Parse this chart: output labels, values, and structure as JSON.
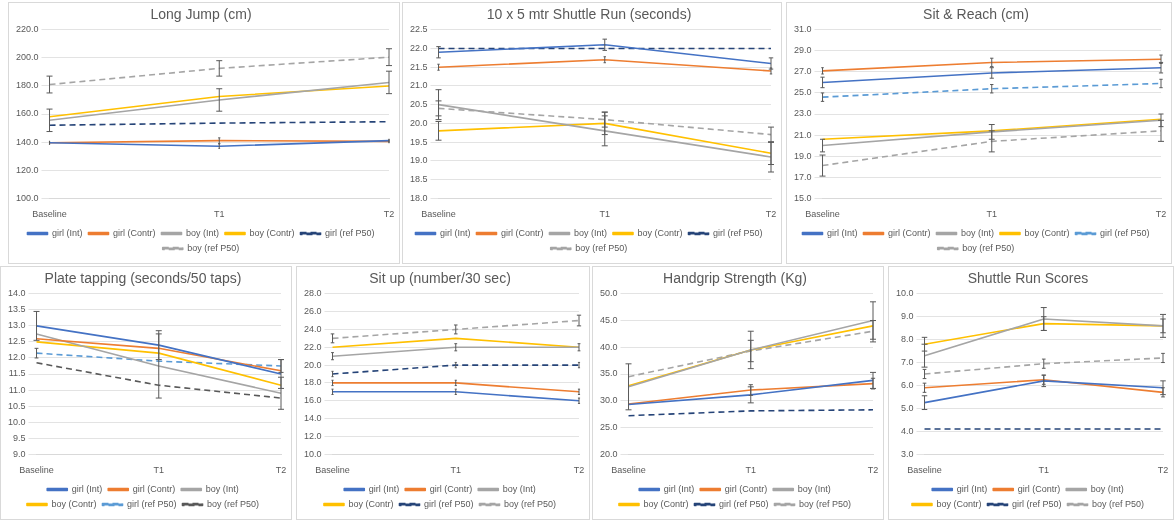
{
  "chart_data": [
    {
      "type": "line",
      "title": "Long Jump (cm)",
      "categories": [
        "Baseline",
        "T1",
        "T2"
      ],
      "ylim": [
        100,
        220
      ],
      "yticks": [
        {
          "value": 100,
          "label": "100.0"
        },
        {
          "value": 120,
          "label": "120.0"
        },
        {
          "value": 140,
          "label": "140.0"
        },
        {
          "value": 160,
          "label": "160.0"
        },
        {
          "value": 180,
          "label": "180.0"
        },
        {
          "value": 200,
          "label": "200.0"
        },
        {
          "value": 220,
          "label": "220.0"
        }
      ],
      "grid": "y",
      "legend": "bottom",
      "marker": "none",
      "series": [
        {
          "name": "girl (Int)",
          "color": "#4472c4",
          "values": [
            139.5,
            137,
            141
          ],
          "errors": [
            1,
            1.5,
            1
          ]
        },
        {
          "name": "girl (Contr)",
          "color": "#ed7d31",
          "values": [
            139.5,
            141,
            140.5
          ],
          "errors": [
            1,
            2,
            1
          ]
        },
        {
          "name": "boy (Int)",
          "color": "#a5a5a5",
          "values": [
            155.5,
            170,
            182.5
          ],
          "errors": [
            8,
            8,
            8
          ]
        },
        {
          "name": "boy (Contr)",
          "color": "#ffc000",
          "values": [
            158,
            172.5,
            180
          ]
        },
        {
          "name": "girl (ref P50)",
          "color": "#264478",
          "values": [
            152,
            153.5,
            154.5
          ],
          "line_style": "dashed"
        },
        {
          "name": "boy (ref P50)",
          "color": "#a5a5a5",
          "values": [
            181,
            192.5,
            200.5
          ],
          "errors": [
            6,
            5.5,
            6
          ],
          "line_style": "dashed"
        }
      ]
    },
    {
      "type": "line",
      "title": "10 x 5 mtr Shuttle Run (seconds)",
      "categories": [
        "Baseline",
        "T1",
        "T2"
      ],
      "ylim": [
        18,
        22.5
      ],
      "yticks": [
        {
          "value": 18,
          "label": "18.0"
        },
        {
          "value": 18.5,
          "label": "18.5"
        },
        {
          "value": 19,
          "label": "19.0"
        },
        {
          "value": 19.5,
          "label": "19.5"
        },
        {
          "value": 20,
          "label": "20.0"
        },
        {
          "value": 20.5,
          "label": "20.5"
        },
        {
          "value": 21,
          "label": "21.0"
        },
        {
          "value": 21.5,
          "label": "21.5"
        },
        {
          "value": 22,
          "label": "22.0"
        },
        {
          "value": 22.5,
          "label": "22.5"
        }
      ],
      "grid": "y",
      "legend": "bottom",
      "marker": "none",
      "series": [
        {
          "name": "girl (Int)",
          "color": "#4472c4",
          "values": [
            21.9,
            22.1,
            21.6
          ],
          "errors": [
            0.15,
            0.15,
            0.15
          ]
        },
        {
          "name": "girl (Contr)",
          "color": "#ed7d31",
          "values": [
            21.5,
            21.7,
            21.4
          ],
          "errors": [
            0.08,
            0.08,
            0.08
          ]
        },
        {
          "name": "boy (Int)",
          "color": "#a5a5a5",
          "values": [
            20.5,
            19.8,
            19.1
          ],
          "errors": [
            0.4,
            0.4,
            0.4
          ]
        },
        {
          "name": "boy (Contr)",
          "color": "#ffc000",
          "values": [
            19.8,
            20,
            19.2
          ],
          "errors": [
            0.25,
            0.3,
            0.3
          ]
        },
        {
          "name": "girl (ref P50)",
          "color": "#264478",
          "values": [
            22,
            22,
            22
          ],
          "line_style": "dashed"
        },
        {
          "name": "boy (ref P50)",
          "color": "#a5a5a5",
          "values": [
            20.4,
            20.1,
            19.7
          ],
          "errors": [
            0.2,
            0.2,
            0.2
          ],
          "line_style": "dashed"
        }
      ]
    },
    {
      "type": "line",
      "title": "Sit & Reach (cm)",
      "categories": [
        "Baseline",
        "T1",
        "T2"
      ],
      "ylim": [
        15,
        31
      ],
      "yticks": [
        {
          "value": 15,
          "label": "15.0"
        },
        {
          "value": 17,
          "label": "17.0"
        },
        {
          "value": 19,
          "label": "19.0"
        },
        {
          "value": 21,
          "label": "21.0"
        },
        {
          "value": 23,
          "label": "23.0"
        },
        {
          "value": 25,
          "label": "25.0"
        },
        {
          "value": 27,
          "label": "27.0"
        },
        {
          "value": 29,
          "label": "29.0"
        },
        {
          "value": 31,
          "label": "31.0"
        }
      ],
      "grid": "y",
      "legend": "bottom",
      "marker": "none",
      "series": [
        {
          "name": "girl (Int)",
          "color": "#4472c4",
          "values": [
            26,
            26.9,
            27.4
          ],
          "errors": [
            0.5,
            0.5,
            0.5
          ]
        },
        {
          "name": "girl (Contr)",
          "color": "#ed7d31",
          "values": [
            27.1,
            27.9,
            28.2
          ],
          "errors": [
            0.3,
            0.4,
            0.4
          ]
        },
        {
          "name": "boy (Int)",
          "color": "#a5a5a5",
          "values": [
            20,
            21.3,
            22.4
          ],
          "errors": [
            0.6,
            0.7,
            0.6
          ]
        },
        {
          "name": "boy (Contr)",
          "color": "#ffc000",
          "values": [
            20.6,
            21.4,
            22.5
          ]
        },
        {
          "name": "girl (ref P50)",
          "color": "#5b9bd5",
          "values": [
            24.6,
            25.4,
            25.9
          ],
          "errors": [
            0.4,
            0.4,
            0.4
          ],
          "line_style": "dashed"
        },
        {
          "name": "boy (ref P50)",
          "color": "#a5a5a5",
          "values": [
            18.1,
            20.4,
            21.4
          ],
          "errors": [
            1,
            1,
            1
          ],
          "line_style": "dashed"
        }
      ]
    },
    {
      "type": "line",
      "title": "Plate tapping (seconds/50 taps)",
      "categories": [
        "Baseline",
        "T1",
        "T2"
      ],
      "ylim": [
        9,
        14
      ],
      "yticks": [
        {
          "value": 9,
          "label": "9.0"
        },
        {
          "value": 9.5,
          "label": "9.5"
        },
        {
          "value": 10,
          "label": "10.0"
        },
        {
          "value": 10.5,
          "label": "10.5"
        },
        {
          "value": 11,
          "label": "11.0"
        },
        {
          "value": 11.5,
          "label": "11.5"
        },
        {
          "value": 12,
          "label": "12.0"
        },
        {
          "value": 12.5,
          "label": "12.5"
        },
        {
          "value": 13,
          "label": "13.0"
        },
        {
          "value": 13.5,
          "label": "13.5"
        },
        {
          "value": 14,
          "label": "14.0"
        }
      ],
      "grid": "y",
      "legend": "bottom",
      "marker": "none",
      "series": [
        {
          "name": "girl (Int)",
          "color": "#4472c4",
          "values": [
            13,
            12.4,
            11.5
          ],
          "errors": [
            0.45,
            0.45,
            0.45
          ]
        },
        {
          "name": "girl (Contr)",
          "color": "#ed7d31",
          "values": [
            12.6,
            12.3,
            11.6
          ]
        },
        {
          "name": "boy (Int)",
          "color": "#a5a5a5",
          "values": [
            12.75,
            11.75,
            10.9
          ],
          "errors": [
            null,
            1,
            0.5
          ]
        },
        {
          "name": "boy (Contr)",
          "color": "#ffc000",
          "values": [
            12.5,
            12.15,
            11.15
          ]
        },
        {
          "name": "girl (ref P50)",
          "color": "#5b9bd5",
          "values": [
            12.15,
            11.9,
            11.75
          ],
          "errors": [
            0.15,
            null,
            0.2
          ],
          "line_style": "dashed"
        },
        {
          "name": "boy (ref P50)",
          "color": "#595959",
          "values": [
            11.85,
            11.15,
            10.75
          ],
          "line_style": "dashed"
        }
      ]
    },
    {
      "type": "line",
      "title": "Sit up (number/30 sec)",
      "categories": [
        "Baseline",
        "T1",
        "T2"
      ],
      "ylim": [
        10,
        28
      ],
      "yticks": [
        {
          "value": 10,
          "label": "10.0"
        },
        {
          "value": 12,
          "label": "12.0"
        },
        {
          "value": 14,
          "label": "14.0"
        },
        {
          "value": 16,
          "label": "16.0"
        },
        {
          "value": 18,
          "label": "18.0"
        },
        {
          "value": 20,
          "label": "20.0"
        },
        {
          "value": 22,
          "label": "22.0"
        },
        {
          "value": 24,
          "label": "24.0"
        },
        {
          "value": 26,
          "label": "26.0"
        },
        {
          "value": 28,
          "label": "28.0"
        }
      ],
      "grid": "y",
      "legend": "bottom",
      "marker": "none",
      "series": [
        {
          "name": "girl (Int)",
          "color": "#4472c4",
          "values": [
            17,
            17,
            16
          ],
          "errors": [
            0.3,
            0.3,
            0.3
          ]
        },
        {
          "name": "girl (Contr)",
          "color": "#ed7d31",
          "values": [
            18,
            18,
            17
          ],
          "errors": [
            0.3,
            0.3,
            0.3
          ]
        },
        {
          "name": "boy (Int)",
          "color": "#a5a5a5",
          "values": [
            21,
            22,
            22
          ],
          "errors": [
            0.4,
            0.4,
            0.4
          ]
        },
        {
          "name": "boy (Contr)",
          "color": "#ffc000",
          "values": [
            22,
            23,
            22
          ]
        },
        {
          "name": "girl (ref P50)",
          "color": "#264478",
          "values": [
            19,
            20,
            20
          ],
          "errors": [
            0.3,
            0.3,
            0.3
          ],
          "line_style": "dashed"
        },
        {
          "name": "boy (ref P50)",
          "color": "#a5a5a5",
          "values": [
            23,
            24,
            25
          ],
          "errors": [
            0.5,
            0.5,
            0.6
          ],
          "line_style": "dashed"
        }
      ]
    },
    {
      "type": "line",
      "title": "Handgrip Strength (Kg)",
      "categories": [
        "Baseline",
        "T1",
        "T2"
      ],
      "ylim": [
        20,
        50
      ],
      "yticks": [
        {
          "value": 20,
          "label": "20.0"
        },
        {
          "value": 25,
          "label": "25.0"
        },
        {
          "value": 30,
          "label": "30.0"
        },
        {
          "value": 35,
          "label": "35.0"
        },
        {
          "value": 40,
          "label": "40.0"
        },
        {
          "value": 45,
          "label": "45.0"
        },
        {
          "value": 50,
          "label": "50.0"
        }
      ],
      "grid": "y",
      "legend": "bottom",
      "marker": "none",
      "series": [
        {
          "name": "girl (Int)",
          "color": "#4472c4",
          "values": [
            29.3,
            31.1,
            33.8
          ],
          "errors": [
            null,
            1.5,
            1.5
          ]
        },
        {
          "name": "girl (Contr)",
          "color": "#ed7d31",
          "values": [
            29.4,
            32,
            33.2
          ],
          "errors": [
            null,
            1,
            1
          ]
        },
        {
          "name": "boy (Int)",
          "color": "#a5a5a5",
          "values": [
            32.6,
            39.5,
            45
          ],
          "errors": [
            4.3,
            3.5,
            3.5
          ]
        },
        {
          "name": "boy (Contr)",
          "color": "#ffc000",
          "values": [
            32.8,
            39.5,
            44
          ]
        },
        {
          "name": "girl (ref P50)",
          "color": "#264478",
          "values": [
            27.2,
            28.1,
            28.3
          ],
          "line_style": "dashed"
        },
        {
          "name": "boy (ref P50)",
          "color": "#a5a5a5",
          "values": [
            34.5,
            39.3,
            43
          ],
          "errors": [
            null,
            2,
            2
          ],
          "line_style": "dashed"
        }
      ]
    },
    {
      "type": "line",
      "title": "Shuttle Run Scores",
      "categories": [
        "Baseline",
        "T1",
        "T2"
      ],
      "ylim": [
        3,
        10
      ],
      "yticks": [
        {
          "value": 3,
          "label": "3.0"
        },
        {
          "value": 4,
          "label": "4.0"
        },
        {
          "value": 5,
          "label": "5.0"
        },
        {
          "value": 6,
          "label": "6.0"
        },
        {
          "value": 7,
          "label": "7.0"
        },
        {
          "value": 8,
          "label": "8.0"
        },
        {
          "value": 9,
          "label": "9.0"
        },
        {
          "value": 10,
          "label": "10.0"
        }
      ],
      "grid": "y",
      "legend": "bottom",
      "marker": "none",
      "series": [
        {
          "name": "girl (Int)",
          "color": "#4472c4",
          "values": [
            5.25,
            6.2,
            5.9
          ],
          "errors": [
            0.3,
            0.25,
            0.3
          ]
        },
        {
          "name": "girl (Contr)",
          "color": "#ed7d31",
          "values": [
            5.9,
            6.25,
            5.7
          ],
          "errors": [
            0.2,
            0.2,
            0.2
          ]
        },
        {
          "name": "boy (Int)",
          "color": "#a5a5a5",
          "values": [
            7.3,
            8.9,
            8.6
          ],
          "errors": [
            0.5,
            0.5,
            0.5
          ]
        },
        {
          "name": "boy (Contr)",
          "color": "#ffc000",
          "values": [
            7.8,
            8.7,
            8.6
          ],
          "errors": [
            0.3,
            0.3,
            0.3
          ]
        },
        {
          "name": "girl (ref P50)",
          "color": "#264478",
          "values": [
            4.1,
            4.1,
            4.1
          ],
          "line_style": "dashed"
        },
        {
          "name": "boy (ref P50)",
          "color": "#a5a5a5",
          "values": [
            6.5,
            6.95,
            7.2
          ],
          "errors": [
            0.2,
            0.2,
            0.2
          ],
          "line_style": "dashed"
        }
      ]
    }
  ]
}
